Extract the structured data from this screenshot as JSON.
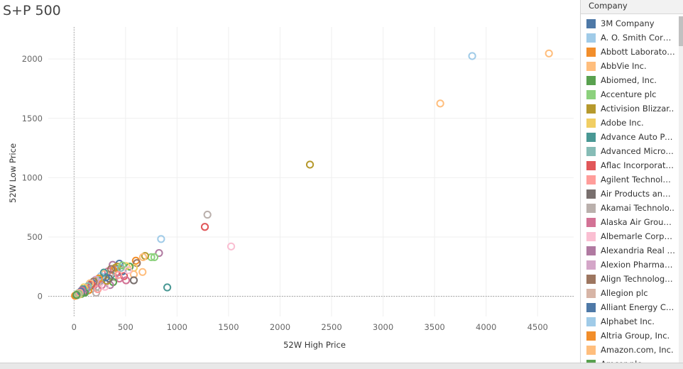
{
  "title": "S+P 500",
  "legend": {
    "title": "Company",
    "items": [
      {
        "label": "3M Company",
        "color": "#4e79a7"
      },
      {
        "label": "A. O. Smith Corpo..",
        "color": "#a0cbe8"
      },
      {
        "label": "Abbott Laboratori..",
        "color": "#f28e2b"
      },
      {
        "label": "AbbVie Inc.",
        "color": "#ffbe7d"
      },
      {
        "label": "Abiomed, Inc.",
        "color": "#59a14f"
      },
      {
        "label": "Accenture plc",
        "color": "#8cd17d"
      },
      {
        "label": "Activision Blizzar..",
        "color": "#b6992d"
      },
      {
        "label": "Adobe Inc.",
        "color": "#f1ce63"
      },
      {
        "label": "Advance Auto Par..",
        "color": "#499894"
      },
      {
        "label": "Advanced Micro D..",
        "color": "#86bcb6"
      },
      {
        "label": "Aflac Incorporated",
        "color": "#e15759"
      },
      {
        "label": "Agilent Technolog..",
        "color": "#ff9d9a"
      },
      {
        "label": "Air Products and ..",
        "color": "#79706e"
      },
      {
        "label": "Akamai Technolo..",
        "color": "#bab0ac"
      },
      {
        "label": "Alaska Air Group, ..",
        "color": "#d37295"
      },
      {
        "label": "Albemarle Corpor..",
        "color": "#fabfd2"
      },
      {
        "label": "Alexandria Real E..",
        "color": "#b07aa1"
      },
      {
        "label": "Alexion Pharmace..",
        "color": "#d4a6c8"
      },
      {
        "label": "Align Technology,..",
        "color": "#9d7660"
      },
      {
        "label": "Allegion plc",
        "color": "#d7b5a6"
      },
      {
        "label": "Alliant Energy Co..",
        "color": "#4e79a7"
      },
      {
        "label": "Alphabet Inc.",
        "color": "#a0cbe8"
      },
      {
        "label": "Altria Group, Inc.",
        "color": "#f28e2b"
      },
      {
        "label": "Amazon.com, Inc.",
        "color": "#ffbe7d"
      },
      {
        "label": "Amcor plc",
        "color": "#59a14f"
      }
    ]
  },
  "chart_data": {
    "type": "scatter",
    "title": "S+P 500",
    "xlabel": "52W High Price",
    "ylabel": "52W Low Price",
    "xlim": [
      -250,
      4850
    ],
    "ylim": [
      -170,
      2270
    ],
    "xticks": [
      0,
      500,
      1000,
      1500,
      2000,
      2500,
      3000,
      3500,
      4000,
      4500
    ],
    "yticks": [
      0,
      500,
      1000,
      1500,
      2000
    ],
    "marker": "hollow-circle",
    "legend_position": "right",
    "grid": true,
    "series": [
      {
        "points": [
          {
            "x": 4610,
            "y": 2047,
            "color": "#ffbe7d"
          },
          {
            "x": 3865,
            "y": 2025,
            "color": "#a0cbe8"
          },
          {
            "x": 3555,
            "y": 1625,
            "color": "#ffbe7d"
          },
          {
            "x": 2290,
            "y": 1110,
            "color": "#b6992d"
          },
          {
            "x": 1295,
            "y": 688,
            "color": "#bab0ac"
          },
          {
            "x": 1270,
            "y": 585,
            "color": "#e15759"
          },
          {
            "x": 1525,
            "y": 420,
            "color": "#fabfd2"
          },
          {
            "x": 845,
            "y": 483,
            "color": "#a0cbe8"
          },
          {
            "x": 905,
            "y": 75,
            "color": "#499894"
          },
          {
            "x": 825,
            "y": 365,
            "color": "#b07aa1"
          },
          {
            "x": 780,
            "y": 330,
            "color": "#8cd17d"
          },
          {
            "x": 750,
            "y": 330,
            "color": "#8cd17d"
          },
          {
            "x": 690,
            "y": 340,
            "color": "#b6992d"
          },
          {
            "x": 670,
            "y": 330,
            "color": "#ffbe7d"
          },
          {
            "x": 600,
            "y": 300,
            "color": "#f28e2b"
          },
          {
            "x": 610,
            "y": 280,
            "color": "#9d7660"
          },
          {
            "x": 580,
            "y": 240,
            "color": "#f1ce63"
          },
          {
            "x": 665,
            "y": 205,
            "color": "#ffbe7d"
          },
          {
            "x": 580,
            "y": 185,
            "color": "#ffbe7d"
          },
          {
            "x": 580,
            "y": 135,
            "color": "#79706e"
          },
          {
            "x": 540,
            "y": 250,
            "color": "#59a14f"
          },
          {
            "x": 505,
            "y": 255,
            "color": "#f1ce63"
          },
          {
            "x": 485,
            "y": 170,
            "color": "#e15759"
          },
          {
            "x": 505,
            "y": 135,
            "color": "#d37295"
          },
          {
            "x": 470,
            "y": 210,
            "color": "#4e79a7"
          },
          {
            "x": 440,
            "y": 275,
            "color": "#4e79a7"
          },
          {
            "x": 375,
            "y": 265,
            "color": "#b07aa1"
          },
          {
            "x": 400,
            "y": 240,
            "color": "#b6992d"
          },
          {
            "x": 385,
            "y": 220,
            "color": "#f28e2b"
          },
          {
            "x": 410,
            "y": 200,
            "color": "#e15759"
          },
          {
            "x": 360,
            "y": 180,
            "color": "#499894"
          },
          {
            "x": 395,
            "y": 160,
            "color": "#bab0ac"
          },
          {
            "x": 440,
            "y": 150,
            "color": "#d37295"
          },
          {
            "x": 380,
            "y": 120,
            "color": "#59a14f"
          },
          {
            "x": 350,
            "y": 95,
            "color": "#b07aa1"
          },
          {
            "x": 330,
            "y": 210,
            "color": "#d37295"
          },
          {
            "x": 300,
            "y": 190,
            "color": "#ffbe7d"
          },
          {
            "x": 280,
            "y": 160,
            "color": "#9d7660"
          },
          {
            "x": 265,
            "y": 130,
            "color": "#4e79a7"
          },
          {
            "x": 250,
            "y": 140,
            "color": "#8cd17d"
          },
          {
            "x": 230,
            "y": 110,
            "color": "#d7b5a6"
          },
          {
            "x": 215,
            "y": 75,
            "color": "#bab0ac"
          },
          {
            "x": 200,
            "y": 105,
            "color": "#f1ce63"
          },
          {
            "x": 190,
            "y": 90,
            "color": "#b07aa1"
          },
          {
            "x": 175,
            "y": 115,
            "color": "#4e79a7"
          },
          {
            "x": 165,
            "y": 60,
            "color": "#86bcb6"
          },
          {
            "x": 150,
            "y": 80,
            "color": "#59a14f"
          },
          {
            "x": 140,
            "y": 50,
            "color": "#f28e2b"
          },
          {
            "x": 125,
            "y": 70,
            "color": "#ffbe7d"
          },
          {
            "x": 110,
            "y": 40,
            "color": "#a0cbe8"
          },
          {
            "x": 100,
            "y": 55,
            "color": "#e15759"
          },
          {
            "x": 90,
            "y": 30,
            "color": "#79706e"
          },
          {
            "x": 80,
            "y": 45,
            "color": "#d4a6c8"
          },
          {
            "x": 70,
            "y": 20,
            "color": "#59a14f"
          },
          {
            "x": 60,
            "y": 35,
            "color": "#4e79a7"
          },
          {
            "x": 50,
            "y": 15,
            "color": "#f1ce63"
          },
          {
            "x": 40,
            "y": 25,
            "color": "#8cd17d"
          },
          {
            "x": 30,
            "y": 10,
            "color": "#499894"
          },
          {
            "x": 20,
            "y": 8,
            "color": "#59a14f"
          },
          {
            "x": 10,
            "y": 5,
            "color": "#f28e2b"
          },
          {
            "x": 215,
            "y": 30,
            "color": "#bab0ac"
          },
          {
            "x": 230,
            "y": 60,
            "color": "#ff9d9a"
          },
          {
            "x": 270,
            "y": 95,
            "color": "#d37295"
          },
          {
            "x": 300,
            "y": 80,
            "color": "#fabfd2"
          },
          {
            "x": 320,
            "y": 130,
            "color": "#b6992d"
          },
          {
            "x": 340,
            "y": 150,
            "color": "#79706e"
          },
          {
            "x": 310,
            "y": 160,
            "color": "#4e79a7"
          },
          {
            "x": 260,
            "y": 170,
            "color": "#a0cbe8"
          },
          {
            "x": 240,
            "y": 150,
            "color": "#f28e2b"
          },
          {
            "x": 210,
            "y": 140,
            "color": "#d4a6c8"
          },
          {
            "x": 190,
            "y": 125,
            "color": "#9d7660"
          },
          {
            "x": 170,
            "y": 100,
            "color": "#e15759"
          },
          {
            "x": 155,
            "y": 110,
            "color": "#ffbe7d"
          },
          {
            "x": 135,
            "y": 85,
            "color": "#86bcb6"
          },
          {
            "x": 120,
            "y": 65,
            "color": "#b07aa1"
          },
          {
            "x": 105,
            "y": 30,
            "color": "#59a14f"
          },
          {
            "x": 95,
            "y": 75,
            "color": "#f1ce63"
          },
          {
            "x": 85,
            "y": 60,
            "color": "#499894"
          },
          {
            "x": 75,
            "y": 50,
            "color": "#d37295"
          },
          {
            "x": 65,
            "y": 40,
            "color": "#4e79a7"
          },
          {
            "x": 55,
            "y": 30,
            "color": "#ff9d9a"
          },
          {
            "x": 45,
            "y": 20,
            "color": "#8cd17d"
          },
          {
            "x": 35,
            "y": 15,
            "color": "#d7b5a6"
          },
          {
            "x": 25,
            "y": 12,
            "color": "#59a14f"
          },
          {
            "x": 420,
            "y": 250,
            "color": "#b6992d"
          },
          {
            "x": 455,
            "y": 240,
            "color": "#86bcb6"
          },
          {
            "x": 430,
            "y": 180,
            "color": "#ff9d9a"
          },
          {
            "x": 360,
            "y": 230,
            "color": "#9d7660"
          },
          {
            "x": 290,
            "y": 200,
            "color": "#499894"
          },
          {
            "x": 470,
            "y": 260,
            "color": "#8cd17d"
          },
          {
            "x": 525,
            "y": 220,
            "color": "#fabfd2"
          }
        ]
      }
    ]
  }
}
